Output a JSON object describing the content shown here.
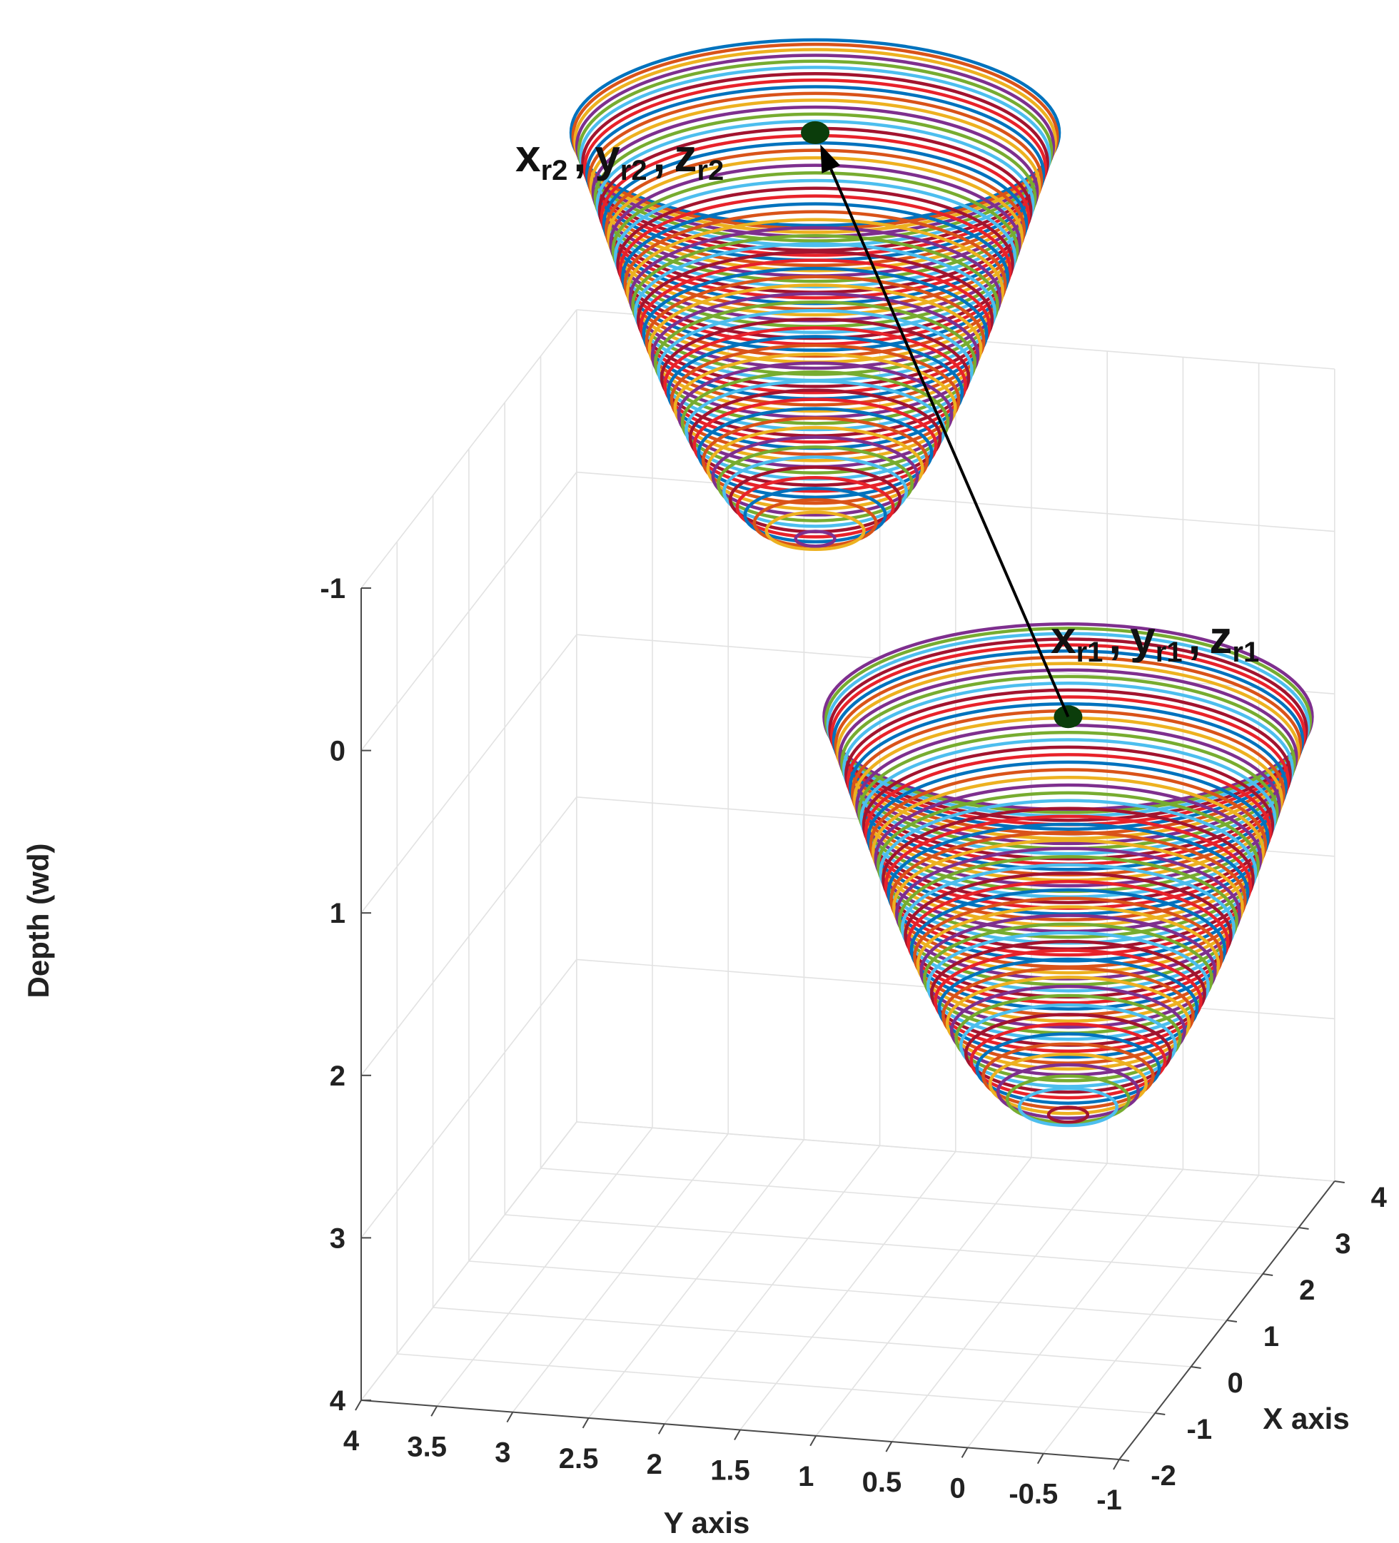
{
  "chart_data": {
    "type": "3d-line",
    "title": "",
    "xlabel": "X axis",
    "ylabel": "Y axis",
    "zlabel": "Depth (wd)",
    "xlim": [
      -2,
      4
    ],
    "ylim": [
      -1,
      4
    ],
    "zlim": [
      -1,
      4
    ],
    "zdir": "reverse",
    "grid": true,
    "x_ticks": [
      "-2",
      "-1",
      "0",
      "1",
      "2",
      "3",
      "4"
    ],
    "y_ticks": [
      "4",
      "3.5",
      "3",
      "2.5",
      "2",
      "1.5",
      "1",
      "0.5",
      "0",
      "-0.5",
      "-1"
    ],
    "z_ticks": [
      "-1",
      "0",
      "1",
      "2",
      "3",
      "4"
    ],
    "series": [
      {
        "name": "paraboloid bowl 2",
        "kind": "stacked rings",
        "center_label": {
          "x": "x",
          "xs": "r2",
          "y": "y",
          "ys": "r2",
          "z": "z",
          "zs": "r2",
          "sep": ","
        },
        "center_point": {
          "x": 2.2,
          "y": 2.0,
          "z": -2.75
        },
        "ring_count": 60,
        "bottom_depth": -0.25
      },
      {
        "name": "paraboloid bowl 1",
        "kind": "stacked rings",
        "center_label": {
          "x": "x",
          "xs": "r1",
          "y": "y",
          "ys": "r1",
          "z": "z",
          "zs": "r1",
          "sep": ","
        },
        "center_point": {
          "x": 0.8,
          "y": 0.0,
          "z": 0.3
        },
        "ring_count": 60,
        "bottom_depth": 2.75
      }
    ],
    "annotations": [
      {
        "type": "arrow",
        "from": "paraboloid bowl 1",
        "to": "paraboloid bowl 2",
        "color": "#000000"
      }
    ],
    "ring_colors": [
      "#0072BD",
      "#D95319",
      "#EDB120",
      "#7E2F8E",
      "#77AC30",
      "#4DBEEE",
      "#A2142F",
      "#E8222A"
    ],
    "marker_color": "#0b3d0b"
  }
}
